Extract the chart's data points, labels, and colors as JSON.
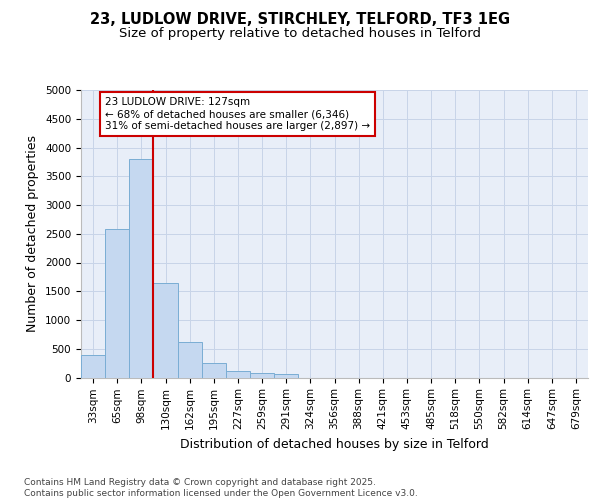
{
  "title_line1": "23, LUDLOW DRIVE, STIRCHLEY, TELFORD, TF3 1EG",
  "title_line2": "Size of property relative to detached houses in Telford",
  "xlabel": "Distribution of detached houses by size in Telford",
  "ylabel": "Number of detached properties",
  "categories": [
    "33sqm",
    "65sqm",
    "98sqm",
    "130sqm",
    "162sqm",
    "195sqm",
    "227sqm",
    "259sqm",
    "291sqm",
    "324sqm",
    "356sqm",
    "388sqm",
    "421sqm",
    "453sqm",
    "485sqm",
    "518sqm",
    "550sqm",
    "582sqm",
    "614sqm",
    "647sqm",
    "679sqm"
  ],
  "values": [
    400,
    2580,
    3800,
    1650,
    625,
    250,
    120,
    75,
    55,
    0,
    0,
    0,
    0,
    0,
    0,
    0,
    0,
    0,
    0,
    0,
    0
  ],
  "bar_color": "#c5d8f0",
  "bar_edge_color": "#7aadd4",
  "vline_color": "#cc0000",
  "vline_x_index": 3,
  "annotation_text": "23 LUDLOW DRIVE: 127sqm\n← 68% of detached houses are smaller (6,346)\n31% of semi-detached houses are larger (2,897) →",
  "annotation_box_facecolor": "#ffffff",
  "annotation_box_edgecolor": "#cc0000",
  "ylim": [
    0,
    5000
  ],
  "yticks": [
    0,
    500,
    1000,
    1500,
    2000,
    2500,
    3000,
    3500,
    4000,
    4500,
    5000
  ],
  "grid_color": "#c8d4e8",
  "background_color": "#e8eef8",
  "footer_line1": "Contains HM Land Registry data © Crown copyright and database right 2025.",
  "footer_line2": "Contains public sector information licensed under the Open Government Licence v3.0.",
  "title_fontsize": 10.5,
  "subtitle_fontsize": 9.5,
  "tick_fontsize": 7.5,
  "label_fontsize": 9,
  "annotation_fontsize": 7.5,
  "footer_fontsize": 6.5
}
